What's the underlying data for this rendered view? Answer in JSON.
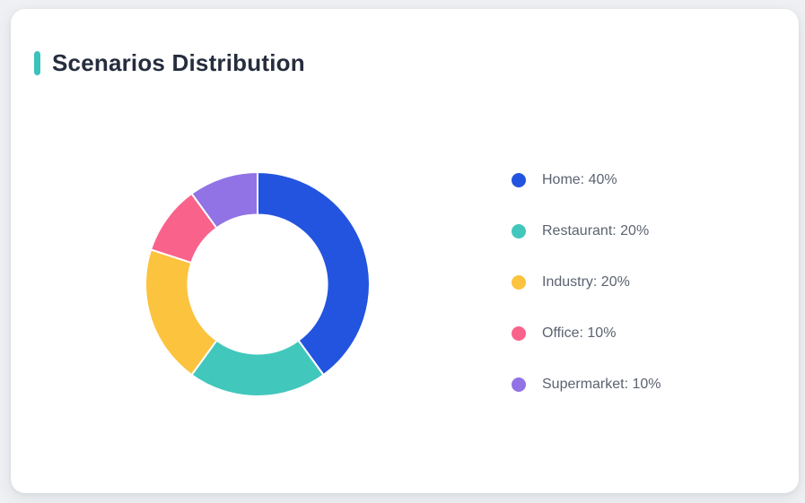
{
  "card": {
    "title": "Scenarios Distribution",
    "accent_color": "#3bc3bd",
    "title_color": "#252d3e",
    "background_color": "#ffffff",
    "page_background_color": "#eef0f3"
  },
  "chart_data": {
    "type": "pie",
    "title": "Scenarios Distribution",
    "donut": true,
    "inner_radius_ratio": 0.62,
    "start_angle_deg": 0,
    "direction": "clockwise",
    "legend_position": "right",
    "categories": [
      "Home",
      "Restaurant",
      "Industry",
      "Office",
      "Supermarket"
    ],
    "values": [
      40,
      20,
      20,
      10,
      10
    ],
    "unit": "%",
    "colors": [
      "#2254df",
      "#42c7bc",
      "#fcc33e",
      "#f9638b",
      "#9173e5"
    ],
    "segment_border_color": "#ffffff",
    "legend_labels": [
      "Home: 40%",
      "Restaurant: 20%",
      "Industry: 20%",
      "Office: 10%",
      "Supermarket: 10%"
    ],
    "legend_text_color": "#5c6370"
  }
}
